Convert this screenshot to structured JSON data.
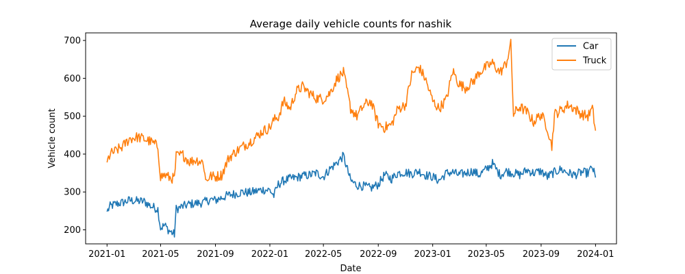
{
  "chart_data": {
    "type": "line",
    "title": "Average daily vehicle counts for nashik",
    "xlabel": "Date",
    "ylabel": "Vehicle count",
    "x_range": [
      "2020-11-14",
      "2024-02-17"
    ],
    "y_range": [
      163,
      720
    ],
    "x_ticks": [
      "2021-01",
      "2021-05",
      "2021-09",
      "2022-01",
      "2022-05",
      "2022-09",
      "2023-01",
      "2023-05",
      "2023-09",
      "2024-01"
    ],
    "y_ticks": [
      200,
      300,
      400,
      500,
      600,
      700
    ],
    "grid": false,
    "legend": "top-right",
    "series": [
      {
        "name": "Car",
        "color": "#1f77b4",
        "points": [
          [
            "2021-01-01",
            248
          ],
          [
            "2021-01-08",
            262
          ],
          [
            "2021-01-20",
            268
          ],
          [
            "2021-02-05",
            272
          ],
          [
            "2021-02-20",
            278
          ],
          [
            "2021-03-10",
            276
          ],
          [
            "2021-03-25",
            275
          ],
          [
            "2021-04-10",
            262
          ],
          [
            "2021-04-25",
            255
          ],
          [
            "2021-05-01",
            205
          ],
          [
            "2021-05-10",
            212
          ],
          [
            "2021-05-20",
            198
          ],
          [
            "2021-06-01",
            188
          ],
          [
            "2021-06-05",
            255
          ],
          [
            "2021-06-20",
            262
          ],
          [
            "2021-07-05",
            268
          ],
          [
            "2021-07-20",
            270
          ],
          [
            "2021-08-05",
            272
          ],
          [
            "2021-08-20",
            280
          ],
          [
            "2021-09-01",
            278
          ],
          [
            "2021-09-15",
            285
          ],
          [
            "2021-10-01",
            292
          ],
          [
            "2021-10-15",
            295
          ],
          [
            "2021-11-01",
            300
          ],
          [
            "2021-11-15",
            298
          ],
          [
            "2021-12-01",
            302
          ],
          [
            "2021-12-15",
            306
          ],
          [
            "2022-01-01",
            305
          ],
          [
            "2022-01-10",
            290
          ],
          [
            "2022-01-20",
            320
          ],
          [
            "2022-02-01",
            330
          ],
          [
            "2022-02-15",
            335
          ],
          [
            "2022-03-01",
            338
          ],
          [
            "2022-03-15",
            342
          ],
          [
            "2022-04-01",
            345
          ],
          [
            "2022-04-15",
            350
          ],
          [
            "2022-05-01",
            340
          ],
          [
            "2022-05-15",
            360
          ],
          [
            "2022-06-01",
            378
          ],
          [
            "2022-06-15",
            395
          ],
          [
            "2022-07-01",
            330
          ],
          [
            "2022-07-15",
            318
          ],
          [
            "2022-08-01",
            315
          ],
          [
            "2022-08-15",
            310
          ],
          [
            "2022-09-01",
            320
          ],
          [
            "2022-09-15",
            345
          ],
          [
            "2022-10-01",
            335
          ],
          [
            "2022-10-15",
            350
          ],
          [
            "2022-11-01",
            352
          ],
          [
            "2022-11-15",
            348
          ],
          [
            "2022-12-01",
            355
          ],
          [
            "2022-12-15",
            345
          ],
          [
            "2023-01-01",
            340
          ],
          [
            "2023-01-15",
            330
          ],
          [
            "2023-02-01",
            350
          ],
          [
            "2023-02-15",
            352
          ],
          [
            "2023-03-01",
            345
          ],
          [
            "2023-03-15",
            350
          ],
          [
            "2023-04-01",
            355
          ],
          [
            "2023-04-15",
            345
          ],
          [
            "2023-05-01",
            360
          ],
          [
            "2023-05-15",
            375
          ],
          [
            "2023-06-01",
            345
          ],
          [
            "2023-06-15",
            355
          ],
          [
            "2023-07-01",
            350
          ],
          [
            "2023-07-15",
            345
          ],
          [
            "2023-08-01",
            358
          ],
          [
            "2023-08-15",
            350
          ],
          [
            "2023-09-01",
            355
          ],
          [
            "2023-09-15",
            340
          ],
          [
            "2023-10-01",
            352
          ],
          [
            "2023-10-15",
            360
          ],
          [
            "2023-11-01",
            350
          ],
          [
            "2023-11-15",
            345
          ],
          [
            "2023-12-01",
            352
          ],
          [
            "2023-12-15",
            350
          ],
          [
            "2023-12-25",
            365
          ],
          [
            "2024-01-01",
            338
          ]
        ]
      },
      {
        "name": "Truck",
        "color": "#ff7f0e",
        "points": [
          [
            "2021-01-01",
            378
          ],
          [
            "2021-01-08",
            400
          ],
          [
            "2021-01-20",
            408
          ],
          [
            "2021-02-05",
            420
          ],
          [
            "2021-02-20",
            440
          ],
          [
            "2021-03-10",
            445
          ],
          [
            "2021-03-25",
            440
          ],
          [
            "2021-04-10",
            432
          ],
          [
            "2021-04-25",
            420
          ],
          [
            "2021-05-01",
            340
          ],
          [
            "2021-05-10",
            345
          ],
          [
            "2021-05-20",
            338
          ],
          [
            "2021-06-01",
            335
          ],
          [
            "2021-06-05",
            395
          ],
          [
            "2021-06-20",
            398
          ],
          [
            "2021-07-05",
            380
          ],
          [
            "2021-07-20",
            385
          ],
          [
            "2021-08-05",
            378
          ],
          [
            "2021-08-10",
            330
          ],
          [
            "2021-08-20",
            342
          ],
          [
            "2021-09-01",
            340
          ],
          [
            "2021-09-15",
            345
          ],
          [
            "2021-10-01",
            390
          ],
          [
            "2021-10-15",
            405
          ],
          [
            "2021-11-01",
            420
          ],
          [
            "2021-11-15",
            430
          ],
          [
            "2021-12-01",
            445
          ],
          [
            "2021-12-15",
            460
          ],
          [
            "2022-01-01",
            470
          ],
          [
            "2022-01-10",
            490
          ],
          [
            "2022-01-20",
            498
          ],
          [
            "2022-02-01",
            540
          ],
          [
            "2022-02-15",
            520
          ],
          [
            "2022-03-01",
            565
          ],
          [
            "2022-03-15",
            578
          ],
          [
            "2022-04-01",
            560
          ],
          [
            "2022-04-15",
            548
          ],
          [
            "2022-05-01",
            545
          ],
          [
            "2022-05-15",
            560
          ],
          [
            "2022-06-01",
            600
          ],
          [
            "2022-06-15",
            615
          ],
          [
            "2022-07-01",
            520
          ],
          [
            "2022-07-15",
            500
          ],
          [
            "2022-08-01",
            530
          ],
          [
            "2022-08-15",
            540
          ],
          [
            "2022-09-01",
            480
          ],
          [
            "2022-09-15",
            470
          ],
          [
            "2022-10-01",
            478
          ],
          [
            "2022-10-15",
            520
          ],
          [
            "2022-11-01",
            530
          ],
          [
            "2022-11-15",
            610
          ],
          [
            "2022-12-01",
            630
          ],
          [
            "2022-12-15",
            600
          ],
          [
            "2023-01-01",
            540
          ],
          [
            "2023-01-15",
            520
          ],
          [
            "2023-02-01",
            545
          ],
          [
            "2023-02-15",
            620
          ],
          [
            "2023-03-01",
            585
          ],
          [
            "2023-03-15",
            575
          ],
          [
            "2023-04-01",
            590
          ],
          [
            "2023-04-15",
            615
          ],
          [
            "2023-05-01",
            630
          ],
          [
            "2023-05-15",
            640
          ],
          [
            "2023-06-01",
            615
          ],
          [
            "2023-06-15",
            640
          ],
          [
            "2023-06-25",
            690
          ],
          [
            "2023-07-01",
            505
          ],
          [
            "2023-07-15",
            525
          ],
          [
            "2023-08-01",
            510
          ],
          [
            "2023-08-15",
            485
          ],
          [
            "2023-09-01",
            505
          ],
          [
            "2023-09-15",
            470
          ],
          [
            "2023-09-25",
            420
          ],
          [
            "2023-10-01",
            505
          ],
          [
            "2023-10-15",
            515
          ],
          [
            "2023-11-01",
            530
          ],
          [
            "2023-11-15",
            520
          ],
          [
            "2023-12-01",
            505
          ],
          [
            "2023-12-15",
            500
          ],
          [
            "2023-12-25",
            520
          ],
          [
            "2024-01-01",
            462
          ]
        ]
      }
    ]
  }
}
